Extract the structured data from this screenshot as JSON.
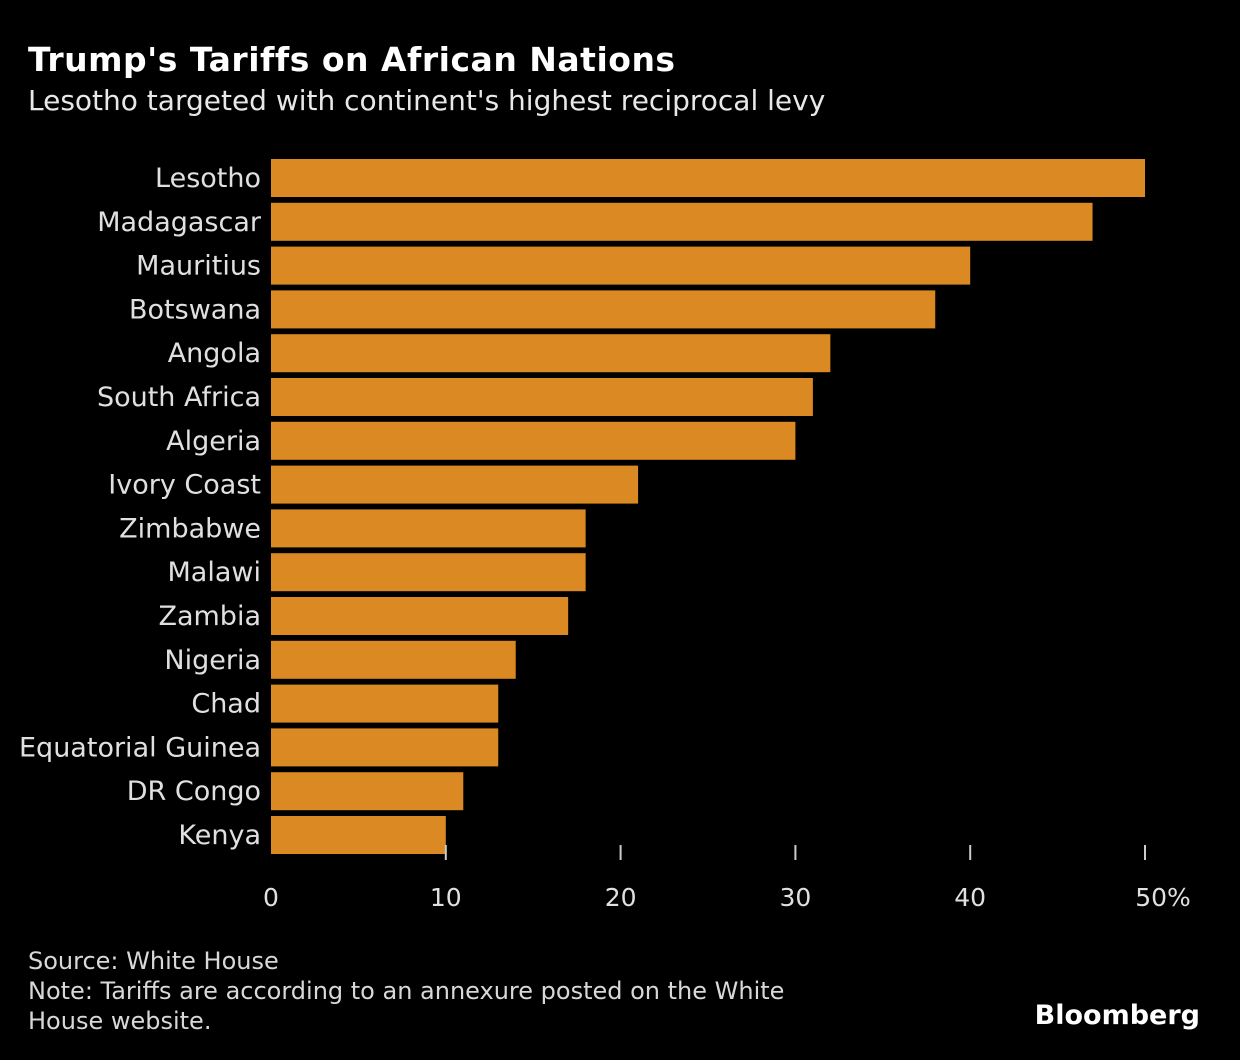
{
  "chart_data": {
    "type": "bar",
    "orientation": "horizontal",
    "title": "Trump's Tariffs on African Nations",
    "subtitle": "Lesotho targeted with continent's highest reciprocal levy",
    "categories": [
      "Lesotho",
      "Madagascar",
      "Mauritius",
      "Botswana",
      "Angola",
      "South Africa",
      "Algeria",
      "Ivory Coast",
      "Zimbabwe",
      "Malawi",
      "Zambia",
      "Nigeria",
      "Chad",
      "Equatorial Guinea",
      "DR Congo",
      "Kenya"
    ],
    "values": [
      50,
      47,
      40,
      38,
      32,
      31,
      30,
      21,
      18,
      18,
      17,
      14,
      13,
      13,
      11,
      10
    ],
    "xlim": [
      0,
      50
    ],
    "xticks": [
      "0",
      "10",
      "20",
      "30",
      "40",
      "50%"
    ],
    "xtick_values": [
      0,
      10,
      20,
      30,
      40,
      50
    ],
    "grid": false,
    "bar_color": "#db8923",
    "background": "#000000"
  },
  "footer": {
    "source": "Source: White House",
    "note": "Note: Tariffs are according to an annexure posted on the White House website.",
    "logo": "Bloomberg"
  }
}
